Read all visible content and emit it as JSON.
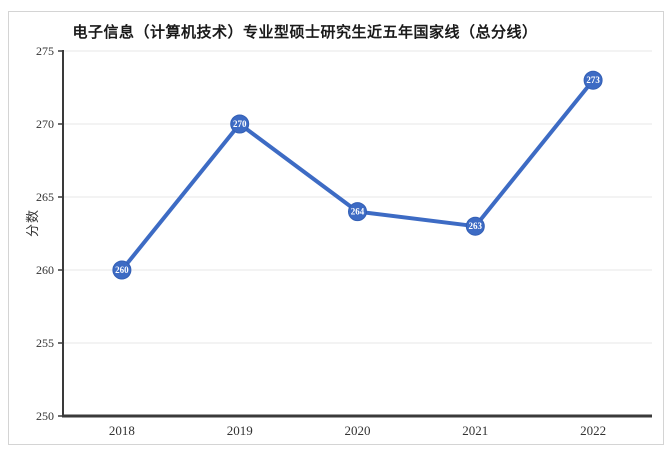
{
  "chart_data": {
    "type": "line",
    "title": "电子信息（计算机技术）专业型硕士研究生近五年国家线（总分线）",
    "xlabel": "",
    "ylabel": "分数",
    "categories": [
      "2018",
      "2019",
      "2020",
      "2021",
      "2022"
    ],
    "values": [
      260,
      270,
      264,
      263,
      273
    ],
    "point_labels": [
      "260",
      "270",
      "264",
      "263",
      "273"
    ],
    "ylim": [
      250,
      275
    ],
    "yticks": [
      250,
      255,
      260,
      265,
      270,
      275
    ],
    "grid": true,
    "legend_position": "none",
    "colors": {
      "line": "#3D6BC4",
      "marker_fill": "#3D6BC4",
      "marker_text": "#ffffff",
      "axis": "#3a3a3a",
      "grid": "#e7e7e7",
      "tick_text": "#333333"
    }
  }
}
